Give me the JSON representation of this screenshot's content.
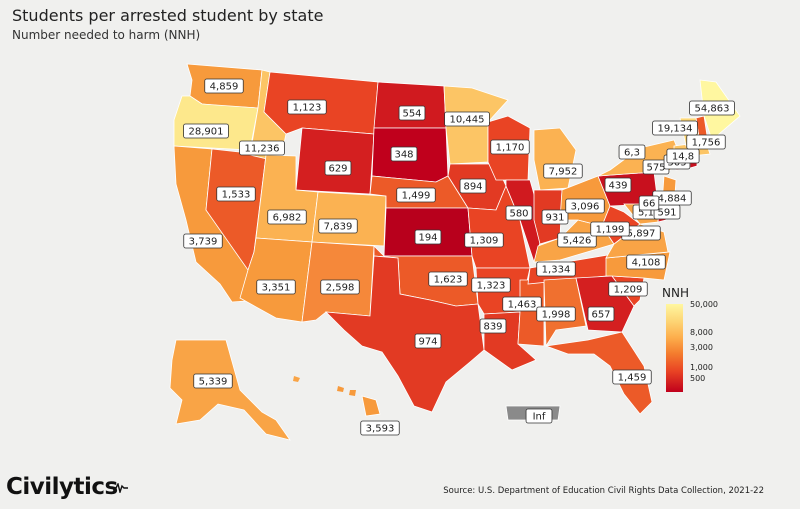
{
  "title": "Students per arrested student by state",
  "subtitle": "Number needed to harm (NNH)",
  "legend": {
    "title": "NNH",
    "ticks": [
      "50,000",
      "8,000",
      "3,000",
      "1,000",
      "500"
    ]
  },
  "source": "Source: U.S. Department of Education Civil Rights Data Collection, 2021-22",
  "logo": "Civilytics",
  "colors": {
    "background": "#f0f0ee",
    "scale_low": "#c0001c",
    "scale_high": "#fff7a0",
    "no_data": "#8a8a8a"
  },
  "states": [
    {
      "name": "Washington",
      "value": "4,859",
      "color": "#f79a3c"
    },
    {
      "name": "Oregon",
      "value": "28,901",
      "color": "#fde88c"
    },
    {
      "name": "California",
      "value": "3,739",
      "color": "#f79a3c"
    },
    {
      "name": "Nevada",
      "value": "1,533",
      "color": "#ec5a28"
    },
    {
      "name": "Idaho",
      "value": "11,236",
      "color": "#fcc565"
    },
    {
      "name": "Montana",
      "value": "1,123",
      "color": "#e94424"
    },
    {
      "name": "Wyoming",
      "value": "629",
      "color": "#d41f20"
    },
    {
      "name": "Utah",
      "value": "6,982",
      "color": "#fbb252"
    },
    {
      "name": "Arizona",
      "value": "3,351",
      "color": "#f79a3c"
    },
    {
      "name": "Colorado",
      "value": "7,839",
      "color": "#fbb252"
    },
    {
      "name": "New Mexico",
      "value": "2,598",
      "color": "#f5883a"
    },
    {
      "name": "North Dakota",
      "value": "554",
      "color": "#d01a1f"
    },
    {
      "name": "South Dakota",
      "value": "348",
      "color": "#c0001c"
    },
    {
      "name": "Nebraska",
      "value": "1,499",
      "color": "#ec5a28"
    },
    {
      "name": "Kansas",
      "value": "194",
      "color": "#b8001c"
    },
    {
      "name": "Oklahoma",
      "value": "1,623",
      "color": "#ec5a28"
    },
    {
      "name": "Texas",
      "value": "974",
      "color": "#e23a23"
    },
    {
      "name": "Minnesota",
      "value": "10,445",
      "color": "#fcc565"
    },
    {
      "name": "Iowa",
      "value": "894",
      "color": "#e23a23"
    },
    {
      "name": "Missouri",
      "value": "1,309",
      "color": "#e94424"
    },
    {
      "name": "Arkansas",
      "value": "1,323",
      "color": "#e94424"
    },
    {
      "name": "Louisiana",
      "value": "839",
      "color": "#e23a23"
    },
    {
      "name": "Wisconsin",
      "value": "1,170",
      "color": "#e94424"
    },
    {
      "name": "Illinois",
      "value": "580",
      "color": "#d01a1f"
    },
    {
      "name": "Mississippi",
      "value": "1,463",
      "color": "#ec5a28"
    },
    {
      "name": "Michigan",
      "value": "7,952",
      "color": "#fbb252"
    },
    {
      "name": "Indiana",
      "value": "931",
      "color": "#e23a23"
    },
    {
      "name": "Kentucky",
      "value": "5,426",
      "color": "#f9a446"
    },
    {
      "name": "Tennessee",
      "value": "1,334",
      "color": "#e94424"
    },
    {
      "name": "Alabama",
      "value": "1,998",
      "color": "#f0702f"
    },
    {
      "name": "Ohio",
      "value": "3,096",
      "color": "#f79a3c"
    },
    {
      "name": "Georgia",
      "value": "657",
      "color": "#d41f20"
    },
    {
      "name": "Florida",
      "value": "1,459",
      "color": "#ec5a28"
    },
    {
      "name": "South Carolina",
      "value": "1,209",
      "color": "#e94424"
    },
    {
      "name": "North Carolina",
      "value": "4,108",
      "color": "#f79a3c"
    },
    {
      "name": "Virginia",
      "value": "5,897",
      "color": "#f9a446"
    },
    {
      "name": "West Virginia",
      "value": "1,199",
      "color": "#e94424"
    },
    {
      "name": "Pennsylvania",
      "value": "439",
      "color": "#c8101e"
    },
    {
      "name": "New York",
      "value": "6,3",
      "color": "#fbb252"
    },
    {
      "name": "Maryland",
      "value": "5,1",
      "color": "#f9a446"
    },
    {
      "name": "Delaware",
      "value": "591",
      "color": "#d01a1f"
    },
    {
      "name": "New Jersey",
      "value": "4,884",
      "color": "#f79a3c"
    },
    {
      "name": "District of Columbia",
      "value": "66",
      "color": "#b8001c"
    },
    {
      "name": "Connecticut",
      "value": "575",
      "color": "#d01a1f"
    },
    {
      "name": "Rhode Island",
      "value": "503",
      "color": "#c8101e"
    },
    {
      "name": "Massachusetts",
      "value": "14,8",
      "color": "#fcc565"
    },
    {
      "name": "New Hampshire",
      "value": "1,756",
      "color": "#ec5a28"
    },
    {
      "name": "Vermont",
      "value": "19,134",
      "color": "#fdd878"
    },
    {
      "name": "Maine",
      "value": "54,863",
      "color": "#fff7a0"
    },
    {
      "name": "Alaska",
      "value": "5,339",
      "color": "#f9a446"
    },
    {
      "name": "Hawaii",
      "value": "3,593",
      "color": "#f79a3c"
    },
    {
      "name": "Puerto Rico",
      "value": "Inf",
      "color": "#8a8a8a"
    }
  ]
}
